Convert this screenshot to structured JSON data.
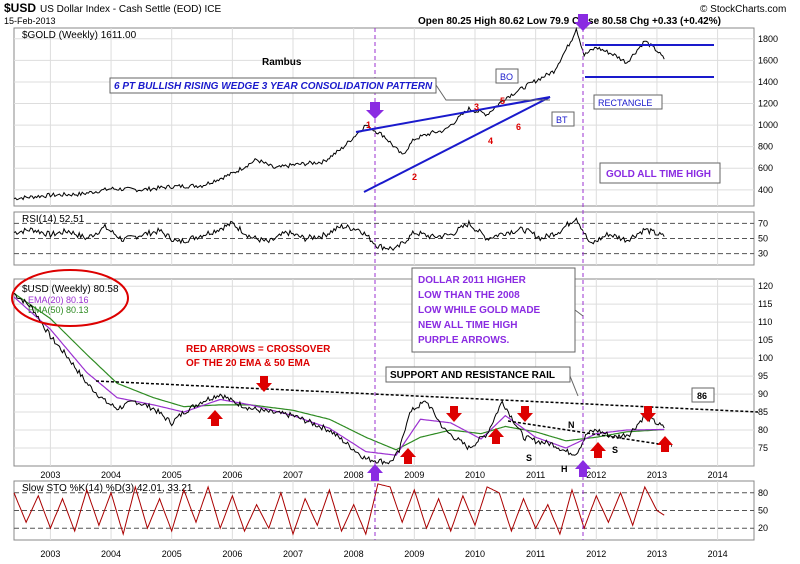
{
  "header": {
    "symbol": "$USD",
    "name": "US Dollar Index - Cash Settle (EOD) ICE",
    "date": "15-Feb-2013",
    "quote": "Open 80.25  High 80.62  Low 79.9  Close 80.58  Chg +0.33 (+0.42%)",
    "watermark": "© StockCharts.com"
  },
  "colors": {
    "price": "#000000",
    "ema20": "#9b30d0",
    "ema50": "#2e8b22",
    "wedge": "#1a1acc",
    "annot_red": "#dd0000",
    "annot_purple": "#8a2be2",
    "stoch": "#aa0000"
  },
  "chart_data": [
    {
      "type": "line",
      "title": "$GOLD (Weekly) 1611.00",
      "x_unit": "year",
      "x_range": [
        2002.4,
        2014.6
      ],
      "ylim": [
        250,
        1900
      ],
      "yticks": [
        400,
        600,
        800,
        1000,
        1200,
        1400,
        1600,
        1800
      ],
      "series": [
        {
          "name": "Gold weekly close",
          "x": [
            2002.4,
            2003.0,
            2003.5,
            2004.0,
            2004.5,
            2005.0,
            2005.5,
            2006.0,
            2006.4,
            2006.7,
            2007.0,
            2007.5,
            2007.8,
            2008.2,
            2008.5,
            2008.8,
            2009.0,
            2009.3,
            2009.5,
            2009.9,
            2010.2,
            2010.5,
            2010.9,
            2011.3,
            2011.6,
            2011.67,
            2011.8,
            2012.0,
            2012.3,
            2012.5,
            2012.8,
            2013.0,
            2013.12
          ],
          "values": [
            320,
            350,
            360,
            410,
            400,
            430,
            440,
            550,
            680,
            600,
            630,
            660,
            780,
            1000,
            900,
            720,
            870,
            930,
            950,
            1150,
            1100,
            1250,
            1380,
            1500,
            1800,
            1900,
            1650,
            1720,
            1650,
            1580,
            1780,
            1690,
            1611
          ]
        }
      ],
      "labels": {
        "author": "Rambus",
        "pattern": "6 PT BULLISH RISING WEDGE 3 YEAR CONSOLIDATION PATTERN",
        "bo": "BO",
        "bt": "BT",
        "rectangle": "RECTANGLE",
        "ath": "GOLD ALL TIME HIGH"
      },
      "points": [
        "1",
        "2",
        "3",
        "4",
        "5",
        "6"
      ]
    },
    {
      "type": "line",
      "title": "RSI(14) 52.51",
      "x_range": [
        2002.4,
        2014.6
      ],
      "ylim": [
        15,
        85
      ],
      "yticks": [
        70,
        50,
        30
      ],
      "series": [
        {
          "name": "RSI",
          "x": [
            2002.4,
            2002.7,
            2003.0,
            2003.3,
            2003.6,
            2003.9,
            2004.2,
            2004.5,
            2004.8,
            2005.1,
            2005.4,
            2005.7,
            2006.0,
            2006.3,
            2006.6,
            2006.9,
            2007.2,
            2007.5,
            2007.8,
            2008.1,
            2008.4,
            2008.7,
            2009.0,
            2009.3,
            2009.6,
            2009.9,
            2010.2,
            2010.5,
            2010.8,
            2011.1,
            2011.4,
            2011.67,
            2011.9,
            2012.2,
            2012.5,
            2012.8,
            2013.12
          ],
          "values": [
            58,
            62,
            55,
            60,
            50,
            65,
            48,
            55,
            60,
            45,
            52,
            60,
            70,
            52,
            45,
            58,
            50,
            54,
            66,
            62,
            40,
            36,
            58,
            52,
            55,
            70,
            50,
            58,
            62,
            50,
            60,
            78,
            42,
            56,
            48,
            62,
            52.51
          ]
        }
      ]
    },
    {
      "type": "line",
      "title": "$USD (Weekly) 80.58",
      "x_unit": "year",
      "x_range": [
        2002.4,
        2014.6
      ],
      "xticks": [
        "2003",
        "2004",
        "2005",
        "2006",
        "2007",
        "2008",
        "2009",
        "2010",
        "2011",
        "2012",
        "2013",
        "2014"
      ],
      "ylim": [
        70,
        122
      ],
      "yticks": [
        75,
        80,
        85,
        90,
        95,
        100,
        105,
        110,
        115,
        120
      ],
      "series": [
        {
          "name": "$USD (Weekly) 80.58",
          "x": [
            2002.4,
            2002.7,
            2003.0,
            2003.3,
            2003.6,
            2003.9,
            2004.1,
            2004.4,
            2004.7,
            2005.0,
            2005.2,
            2005.5,
            2005.8,
            2006.0,
            2006.3,
            2006.6,
            2007.0,
            2007.3,
            2007.6,
            2007.9,
            2008.2,
            2008.6,
            2008.75,
            2008.9,
            2009.0,
            2009.2,
            2009.5,
            2009.9,
            2010.2,
            2010.45,
            2010.8,
            2011.0,
            2011.3,
            2011.5,
            2011.67,
            2011.85,
            2012.0,
            2012.3,
            2012.55,
            2012.8,
            2013.12
          ],
          "values": [
            118,
            114,
            106,
            100,
            93,
            88,
            86,
            88,
            86,
            82,
            85,
            88,
            90,
            88,
            86,
            85,
            84,
            82,
            80,
            76,
            72,
            71,
            74,
            84,
            86,
            88,
            80,
            75,
            79,
            88,
            78,
            77,
            76,
            74,
            73.5,
            79,
            80,
            78,
            79,
            84,
            80.58
          ]
        },
        {
          "name": "EMA(20) 80.16",
          "x": [
            2002.4,
            2003.0,
            2003.6,
            2004.1,
            2004.7,
            2005.2,
            2005.8,
            2006.3,
            2007.0,
            2007.6,
            2008.2,
            2008.7,
            2009.1,
            2009.6,
            2010.1,
            2010.5,
            2011.0,
            2011.5,
            2012.0,
            2012.5,
            2013.12
          ],
          "values": [
            117,
            108,
            96,
            89,
            87,
            85,
            88.5,
            87,
            84,
            80.5,
            74,
            73,
            83,
            82,
            77.5,
            84,
            78,
            75,
            79,
            80,
            80.16
          ]
        },
        {
          "name": "EMA(50) 80.13",
          "x": [
            2002.4,
            2003.0,
            2003.6,
            2004.1,
            2004.7,
            2005.2,
            2005.8,
            2006.3,
            2007.0,
            2007.6,
            2008.2,
            2008.7,
            2009.1,
            2009.6,
            2010.1,
            2010.5,
            2011.0,
            2011.5,
            2012.0,
            2012.5,
            2013.12
          ],
          "values": [
            118,
            111,
            101,
            93,
            89,
            86.5,
            87,
            87,
            85.5,
            83,
            78,
            74.5,
            78,
            80,
            79,
            81,
            79.5,
            77,
            78,
            79.5,
            80.13
          ]
        }
      ],
      "labels": {
        "crossover": "RED ARROWS = CROSSOVER\nOF THE 20 EMA & 50 EMA",
        "dollar_note": "DOLLAR 2011 HIGHER\nLOW THAN THE 2008\nLOW WHILE GOLD MADE\nNEW ALL TIME HIGH\nPURPLE ARROWS.",
        "rail": "SUPPORT AND RESISTANCE RAIL",
        "rail_value": "86",
        "shoulder_left": "S",
        "head": "H",
        "shoulder_right": "S",
        "neckline": "N"
      }
    },
    {
      "type": "line",
      "title": "Slow STO %K(14) %D(3) 42.01, 33.21",
      "x_range": [
        2002.4,
        2014.6
      ],
      "ylim": [
        0,
        100
      ],
      "yticks": [
        80,
        50,
        20
      ],
      "series": [
        {
          "name": "%K",
          "x": [
            2002.4,
            2002.6,
            2002.8,
            2003.0,
            2003.2,
            2003.4,
            2003.6,
            2003.8,
            2004.0,
            2004.2,
            2004.4,
            2004.6,
            2004.8,
            2005.0,
            2005.2,
            2005.4,
            2005.6,
            2005.8,
            2006.0,
            2006.2,
            2006.4,
            2006.6,
            2006.8,
            2007.0,
            2007.2,
            2007.4,
            2007.6,
            2007.8,
            2008.0,
            2008.2,
            2008.4,
            2008.6,
            2008.8,
            2009.0,
            2009.2,
            2009.4,
            2009.6,
            2009.8,
            2010.0,
            2010.2,
            2010.4,
            2010.6,
            2010.8,
            2011.0,
            2011.2,
            2011.4,
            2011.6,
            2011.8,
            2012.0,
            2012.2,
            2012.4,
            2012.6,
            2012.8,
            2013.0,
            2013.12
          ],
          "values": [
            80,
            30,
            75,
            20,
            70,
            15,
            85,
            25,
            80,
            10,
            90,
            20,
            70,
            15,
            85,
            30,
            90,
            20,
            75,
            15,
            60,
            20,
            80,
            10,
            70,
            25,
            85,
            15,
            60,
            10,
            95,
            90,
            30,
            85,
            20,
            70,
            15,
            75,
            25,
            90,
            80,
            15,
            70,
            20,
            60,
            10,
            85,
            20,
            75,
            30,
            80,
            25,
            90,
            50,
            42.01
          ]
        }
      ]
    }
  ]
}
